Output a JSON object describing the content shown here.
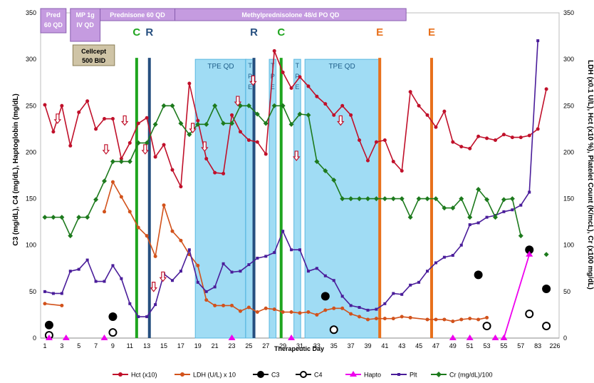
{
  "chart_data": {
    "type": "line",
    "xlabel": "Therapeutic Day",
    "ylabel_left": "C3 (mg/dL), C4 (mg/dL), Haptoglobin (mg/dL)",
    "ylabel_right": "LDH (x0.1 U/L), Hct (x10 %), Platelet Count (K/mcL), Cr (x100 mg/dL)",
    "ylim": [
      0,
      350
    ],
    "yticks": [
      0,
      50,
      100,
      150,
      200,
      250,
      300,
      350
    ],
    "x_tick_labels": [
      "1",
      "3",
      "5",
      "7",
      "9",
      "11",
      "13",
      "15",
      "17",
      "19",
      "21",
      "23",
      "25",
      "27",
      "29",
      "31",
      "33",
      "35",
      "37",
      "39",
      "41",
      "43",
      "45",
      "47",
      "49",
      "51",
      "53",
      "55",
      "57",
      "83",
      "226"
    ],
    "treatments": [
      {
        "label_lines": [
          "Pred",
          "60 QD"
        ],
        "x0": 0.5,
        "x1": 3.5
      },
      {
        "label_lines": [
          "MP 1g",
          "IV QD"
        ],
        "x0": 4,
        "x1": 7.5
      },
      {
        "label_lines": [
          "Prednisone 60 QD"
        ],
        "x0": 7.5,
        "x1": 16.3
      },
      {
        "label_lines": [
          "Methylprednisolone 48/d PO QD"
        ],
        "x0": 16.3,
        "x1": 43.5
      }
    ],
    "cellcept": {
      "label_lines": [
        "Cellcept",
        "500 BID"
      ],
      "x0": 4.3,
      "x1": 9.2
    },
    "tpe": [
      {
        "label": "TPE QD",
        "x0": 18.7,
        "x1": 24.7
      },
      {
        "label": "T P E",
        "x0": 24.6,
        "x1": 25.7
      },
      {
        "label": "T P E",
        "x0": 27.4,
        "x1": 28.2
      },
      {
        "label": "T P E",
        "x0": 30.3,
        "x1": 31.1
      },
      {
        "label": "TPE QD",
        "x0": 31.6,
        "x1": 40.3
      }
    ],
    "markers": [
      {
        "label": "C",
        "x": 11.8,
        "color": "#1fa51f"
      },
      {
        "label": "R",
        "x": 13.3,
        "color": "#264f7f"
      },
      {
        "label": "R",
        "x": 25.6,
        "color": "#264f7f"
      },
      {
        "label": "C",
        "x": 28.8,
        "color": "#1fa51f"
      },
      {
        "label": "E",
        "x": 40.4,
        "color": "#e8701b"
      },
      {
        "label": "E",
        "x": 46.5,
        "color": "#e8701b"
      }
    ],
    "arrow_markers": [
      {
        "x": 2.5,
        "y": 235
      },
      {
        "x": 8.2,
        "y": 202
      },
      {
        "x": 10.4,
        "y": 233
      },
      {
        "x": 12.8,
        "y": 202
      },
      {
        "x": 13.8,
        "y": 54
      },
      {
        "x": 14.9,
        "y": 65
      },
      {
        "x": 18.4,
        "y": 225
      },
      {
        "x": 19.8,
        "y": 205
      },
      {
        "x": 23.7,
        "y": 254
      },
      {
        "x": 25.5,
        "y": 276
      },
      {
        "x": 30.6,
        "y": 195
      },
      {
        "x": 35.8,
        "y": 233
      }
    ],
    "series": [
      {
        "name": "Hct (x10)",
        "color": "#c0102a",
        "marker": "dot",
        "points": [
          [
            1,
            251
          ],
          [
            2,
            222
          ],
          [
            3,
            250
          ],
          [
            4,
            207
          ],
          [
            5,
            243
          ],
          [
            6,
            255
          ],
          [
            7,
            225
          ],
          [
            8,
            236
          ],
          [
            9,
            236
          ],
          [
            10,
            193
          ],
          [
            11,
            210
          ],
          [
            12,
            231
          ],
          [
            13,
            237
          ],
          [
            14,
            195
          ],
          [
            15,
            208
          ],
          [
            16,
            181
          ],
          [
            17,
            163
          ],
          [
            18,
            274
          ],
          [
            19,
            234
          ],
          [
            20,
            193
          ],
          [
            21,
            178
          ],
          [
            22,
            177
          ],
          [
            23,
            240
          ],
          [
            24,
            222
          ],
          [
            25,
            213
          ],
          [
            26,
            211
          ],
          [
            27,
            198
          ],
          [
            28,
            309
          ],
          [
            29,
            286
          ],
          [
            30,
            269
          ],
          [
            31,
            281
          ],
          [
            32,
            271
          ],
          [
            33,
            260
          ],
          [
            34,
            252
          ],
          [
            35,
            240
          ],
          [
            36,
            250
          ],
          [
            37,
            240
          ],
          [
            38,
            213
          ],
          [
            39,
            191
          ],
          [
            40,
            211
          ],
          [
            41,
            213
          ],
          [
            42,
            190
          ],
          [
            43,
            180
          ],
          [
            44,
            265
          ],
          [
            45,
            250
          ],
          [
            46,
            240
          ],
          [
            47,
            227
          ],
          [
            48,
            244
          ],
          [
            49,
            211
          ],
          [
            50,
            206
          ],
          [
            51,
            204
          ],
          [
            52,
            217
          ],
          [
            53,
            215
          ],
          [
            54,
            213
          ],
          [
            55,
            219
          ],
          [
            56,
            216
          ],
          [
            57,
            216
          ],
          [
            58,
            218
          ],
          [
            59,
            225
          ],
          [
            60,
            268
          ]
        ]
      },
      {
        "name": "LDH (U/L) x 10",
        "color": "#d2521b",
        "marker": "dot",
        "points": [
          [
            1,
            37
          ],
          [
            3,
            35
          ],
          [
            8,
            136
          ],
          [
            9,
            168
          ],
          [
            10,
            152
          ],
          [
            11,
            136
          ],
          [
            12,
            119
          ],
          [
            13,
            110
          ],
          [
            14,
            88
          ],
          [
            15,
            143
          ],
          [
            16,
            115
          ],
          [
            17,
            105
          ],
          [
            18,
            90
          ],
          [
            19,
            78
          ],
          [
            20,
            41
          ],
          [
            21,
            35
          ],
          [
            22,
            35
          ],
          [
            23,
            35
          ],
          [
            24,
            29
          ],
          [
            25,
            33
          ],
          [
            26,
            28
          ],
          [
            27,
            32
          ],
          [
            28,
            31
          ],
          [
            29,
            28
          ],
          [
            30,
            28
          ],
          [
            31,
            27
          ],
          [
            32,
            28
          ],
          [
            33,
            25
          ],
          [
            34,
            30
          ],
          [
            35,
            32
          ],
          [
            36,
            32
          ],
          [
            37,
            26
          ],
          [
            38,
            23
          ],
          [
            39,
            20
          ],
          [
            40,
            21
          ],
          [
            41,
            21
          ],
          [
            42,
            21
          ],
          [
            43,
            23
          ],
          [
            44,
            22
          ],
          [
            46,
            20
          ],
          [
            47,
            20
          ],
          [
            48,
            20
          ],
          [
            49,
            18
          ],
          [
            50,
            20
          ],
          [
            51,
            21
          ],
          [
            52,
            20
          ],
          [
            53,
            22
          ]
        ]
      },
      {
        "name": "C3",
        "color": "#000000",
        "marker": "filled-circle",
        "points": [
          [
            1.5,
            14
          ],
          [
            9,
            23
          ],
          [
            34,
            45
          ],
          [
            52,
            68
          ],
          [
            58,
            95
          ],
          [
            60,
            53
          ]
        ]
      },
      {
        "name": "C4",
        "color": "#000000",
        "marker": "open-circle",
        "points": [
          [
            1.5,
            3
          ],
          [
            9,
            6
          ],
          [
            35,
            9
          ],
          [
            53,
            13
          ],
          [
            58,
            26
          ],
          [
            60,
            13
          ]
        ]
      },
      {
        "name": "Hapto",
        "color": "#ee00ee",
        "marker": "triangle",
        "points": [
          [
            1.5,
            0
          ],
          [
            3.5,
            0
          ],
          [
            8,
            0
          ],
          [
            23,
            0
          ],
          [
            30,
            0
          ],
          [
            49,
            0
          ],
          [
            51,
            0
          ],
          [
            54,
            0
          ],
          [
            55,
            0
          ],
          [
            58,
            90
          ]
        ]
      },
      {
        "name": "Plt",
        "color": "#4a1d9a",
        "marker": "dash",
        "points": [
          [
            1,
            50
          ],
          [
            2,
            48
          ],
          [
            3,
            48
          ],
          [
            4,
            72
          ],
          [
            5,
            74
          ],
          [
            6,
            84
          ],
          [
            7,
            61
          ],
          [
            8,
            61
          ],
          [
            9,
            78
          ],
          [
            10,
            64
          ],
          [
            11,
            37
          ],
          [
            12,
            23
          ],
          [
            13,
            23
          ],
          [
            14,
            36
          ],
          [
            15,
            69
          ],
          [
            16,
            62
          ],
          [
            17,
            72
          ],
          [
            18,
            95
          ],
          [
            19,
            60
          ],
          [
            20,
            50
          ],
          [
            21,
            55
          ],
          [
            22,
            80
          ],
          [
            23,
            71
          ],
          [
            24,
            72
          ],
          [
            25,
            79
          ],
          [
            26,
            86
          ],
          [
            27,
            88
          ],
          [
            28,
            92
          ],
          [
            29,
            115
          ],
          [
            30,
            95
          ],
          [
            31,
            95
          ],
          [
            32,
            72
          ],
          [
            33,
            75
          ],
          [
            34,
            67
          ],
          [
            35,
            62
          ],
          [
            36,
            45
          ],
          [
            37,
            35
          ],
          [
            38,
            33
          ],
          [
            39,
            30
          ],
          [
            40,
            31
          ],
          [
            41,
            37
          ],
          [
            42,
            48
          ],
          [
            43,
            47
          ],
          [
            44,
            57
          ],
          [
            45,
            60
          ],
          [
            46,
            72
          ],
          [
            47,
            81
          ],
          [
            48,
            87
          ],
          [
            49,
            89
          ],
          [
            50,
            100
          ],
          [
            51,
            122
          ],
          [
            52,
            124
          ],
          [
            53,
            130
          ],
          [
            54,
            132
          ],
          [
            55,
            136
          ],
          [
            56,
            138
          ],
          [
            57,
            143
          ],
          [
            58,
            157
          ],
          [
            59,
            320
          ]
        ]
      },
      {
        "name": "Cr (mg/dL)/100",
        "color": "#1d7a1d",
        "marker": "diamond",
        "points": [
          [
            1,
            130
          ],
          [
            2,
            130
          ],
          [
            3,
            130
          ],
          [
            4,
            110
          ],
          [
            5,
            130
          ],
          [
            6,
            130
          ],
          [
            7,
            149
          ],
          [
            8,
            169
          ],
          [
            9,
            190
          ],
          [
            10,
            190
          ],
          [
            11,
            190
          ],
          [
            12,
            210
          ],
          [
            13,
            210
          ],
          [
            14,
            230
          ],
          [
            15,
            250
          ],
          [
            16,
            250
          ],
          [
            17,
            231
          ],
          [
            18,
            219
          ],
          [
            19,
            230
          ],
          [
            20,
            230
          ],
          [
            21,
            250
          ],
          [
            22,
            231
          ],
          [
            23,
            231
          ],
          [
            24,
            250
          ],
          [
            25,
            250
          ],
          [
            26,
            241
          ],
          [
            27,
            231
          ],
          [
            28,
            250
          ],
          [
            29,
            250
          ],
          [
            30,
            230
          ],
          [
            31,
            241
          ],
          [
            32,
            240
          ],
          [
            33,
            190
          ],
          [
            34,
            180
          ],
          [
            35,
            170
          ],
          [
            36,
            150
          ],
          [
            37,
            150
          ],
          [
            38,
            150
          ],
          [
            39,
            150
          ],
          [
            40,
            150
          ],
          [
            41,
            150
          ],
          [
            42,
            150
          ],
          [
            43,
            150
          ],
          [
            44,
            130
          ],
          [
            45,
            150
          ],
          [
            46,
            150
          ],
          [
            47,
            150
          ],
          [
            48,
            140
          ],
          [
            49,
            140
          ],
          [
            50,
            150
          ],
          [
            51,
            130
          ],
          [
            52,
            160
          ],
          [
            53,
            149
          ],
          [
            54,
            130
          ],
          [
            55,
            149
          ],
          [
            56,
            150
          ],
          [
            57,
            110
          ],
          [
            60,
            90
          ]
        ]
      }
    ],
    "legend_entries": [
      "Hct (x10)",
      "LDH (U/L) x 10",
      "C3",
      "C4",
      "Hapto",
      "Plt",
      "Cr (mg/dL)/100"
    ]
  }
}
